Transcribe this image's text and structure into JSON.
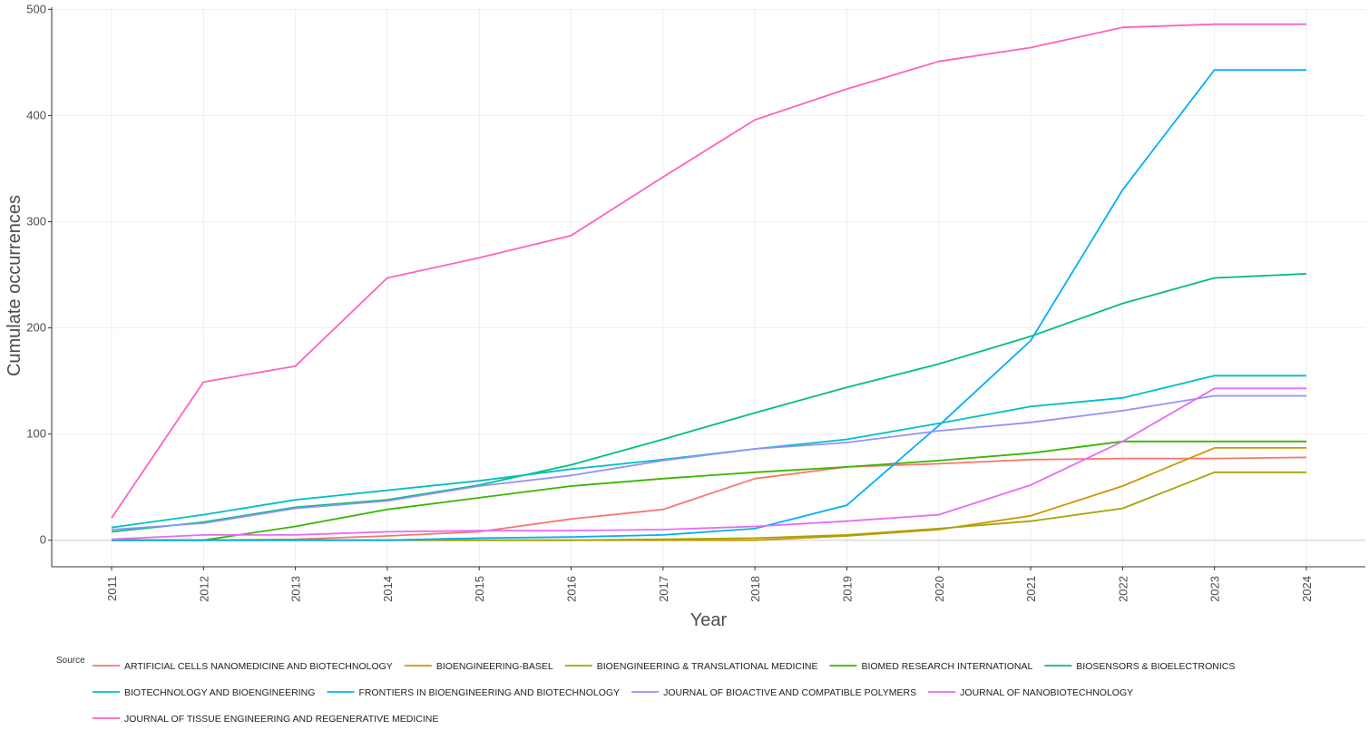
{
  "chart_data": {
    "type": "line",
    "xlabel": "Year",
    "ylabel": "Cumulate occurrences",
    "x": [
      2011,
      2012,
      2013,
      2014,
      2015,
      2016,
      2017,
      2018,
      2019,
      2020,
      2021,
      2022,
      2023,
      2024
    ],
    "ylim": [
      -25,
      502
    ],
    "yticks": [
      0,
      100,
      200,
      300,
      400,
      500
    ],
    "grid": true,
    "legend_title": "Source",
    "legend_position": "bottom",
    "series": [
      {
        "name": "ARTIFICIAL CELLS NANOMEDICINE AND BIOTECHNOLOGY",
        "color": "#F8766D",
        "values": [
          0,
          0,
          1,
          4,
          8,
          20,
          29,
          58,
          69,
          72,
          76,
          77,
          77,
          78
        ]
      },
      {
        "name": "BIOENGINEERING-BASEL",
        "color": "#CD9600",
        "values": [
          0,
          0,
          0,
          0,
          0,
          0,
          0,
          0,
          4,
          10,
          23,
          51,
          87,
          87
        ]
      },
      {
        "name": "BIOENGINEERING & TRANSLATIONAL MEDICINE",
        "color": "#A3A500",
        "values": [
          0,
          0,
          0,
          0,
          0,
          0,
          1,
          2,
          5,
          11,
          18,
          30,
          64,
          64
        ]
      },
      {
        "name": "BIOMED RESEARCH INTERNATIONAL",
        "color": "#39B600",
        "values": [
          0,
          0,
          13,
          29,
          40,
          51,
          58,
          64,
          69,
          75,
          82,
          93,
          93,
          93
        ]
      },
      {
        "name": "BIOSENSORS & BIOELECTRONICS",
        "color": "#00BF7D",
        "values": [
          8,
          17,
          31,
          38,
          52,
          71,
          95,
          120,
          144,
          166,
          192,
          223,
          247,
          251
        ]
      },
      {
        "name": "BIOTECHNOLOGY AND BIOENGINEERING",
        "color": "#00BFC4",
        "values": [
          12,
          24,
          38,
          47,
          56,
          67,
          76,
          86,
          95,
          110,
          126,
          134,
          155,
          155
        ]
      },
      {
        "name": "FRONTIERS IN BIOENGINEERING AND BIOTECHNOLOGY",
        "color": "#00B0F6",
        "values": [
          0,
          0,
          0,
          0,
          2,
          3,
          5,
          11,
          33,
          108,
          188,
          330,
          443,
          443
        ]
      },
      {
        "name": "JOURNAL OF BIOACTIVE AND COMPATIBLE POLYMERS",
        "color": "#9590FF",
        "values": [
          10,
          16,
          30,
          37,
          51,
          61,
          75,
          86,
          92,
          103,
          111,
          122,
          136,
          136
        ]
      },
      {
        "name": "JOURNAL OF NANOBIOTECHNOLOGY",
        "color": "#E76BF3",
        "values": [
          1,
          5,
          5,
          8,
          9,
          9,
          10,
          13,
          18,
          24,
          52,
          93,
          143,
          143
        ]
      },
      {
        "name": "JOURNAL OF TISSUE ENGINEERING AND REGENERATIVE MEDICINE",
        "color": "#FF62BC",
        "values": [
          21,
          149,
          164,
          247,
          266,
          287,
          342,
          396,
          425,
          451,
          464,
          483,
          486,
          486
        ]
      }
    ]
  }
}
